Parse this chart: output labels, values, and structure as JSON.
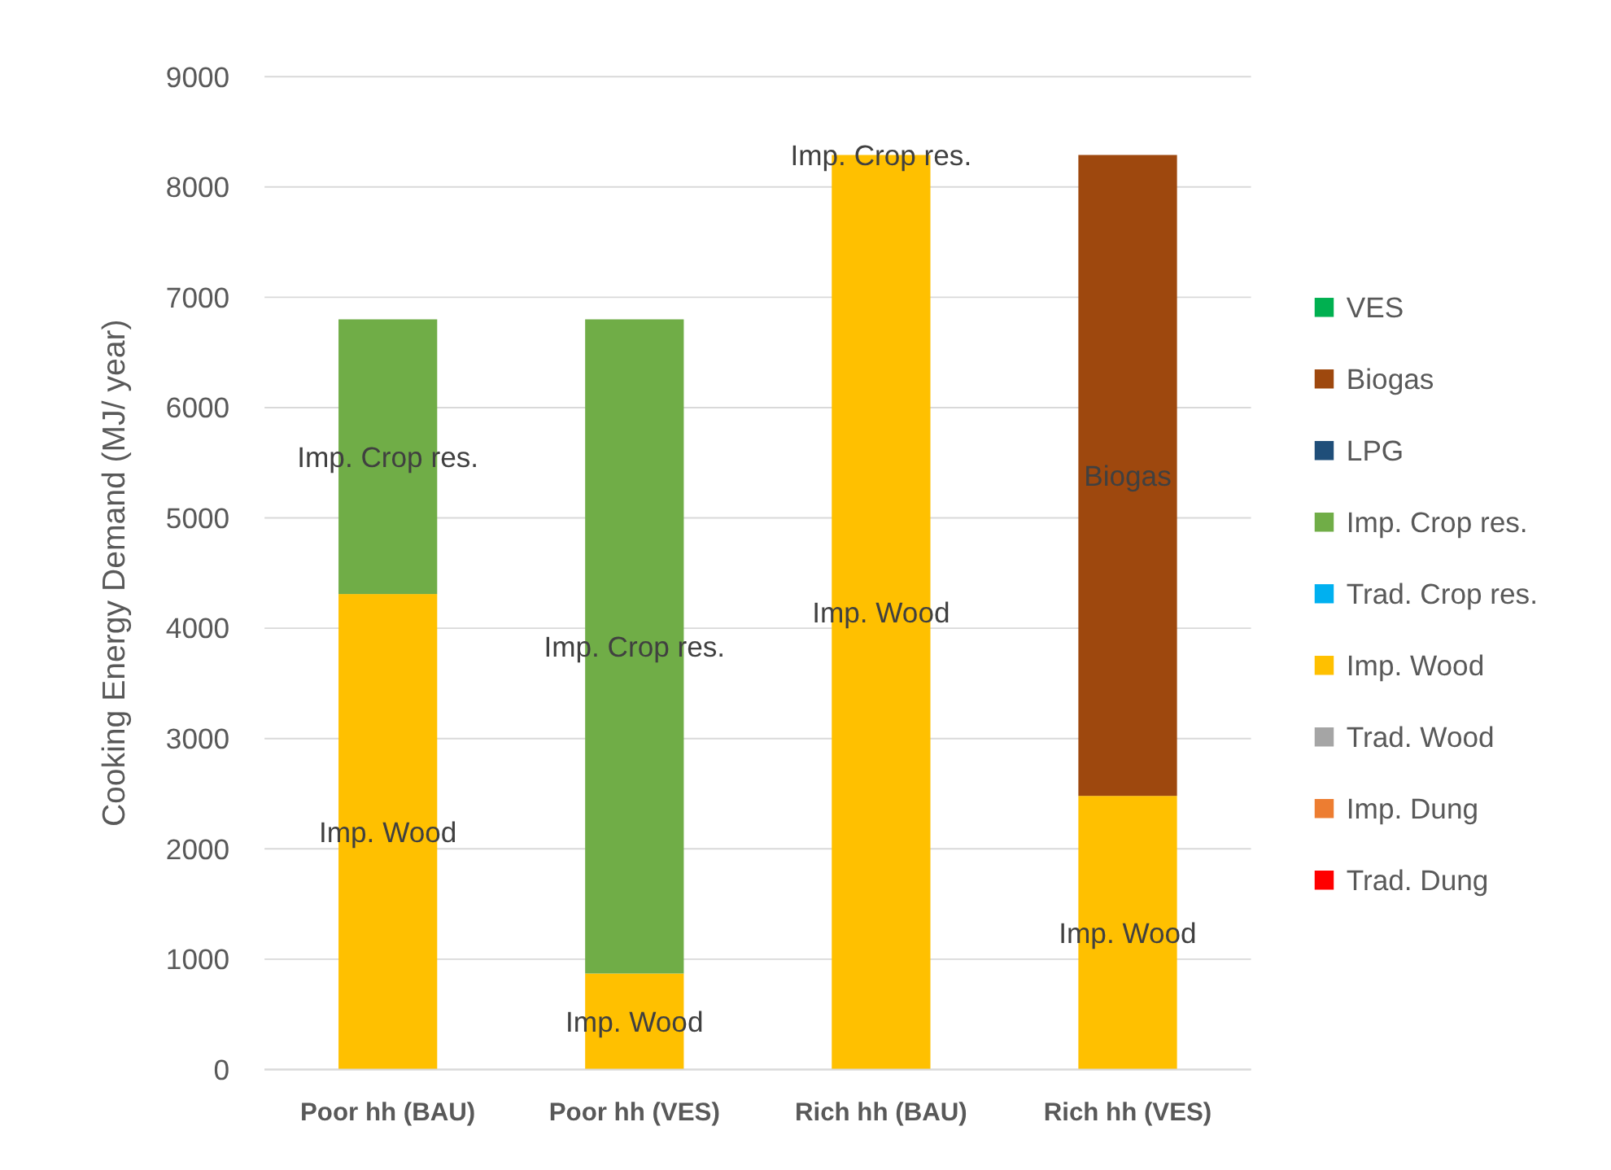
{
  "chart_data": {
    "type": "bar",
    "stacked": true,
    "ylabel": "Cooking Energy Demand (MJ/ year)",
    "categories": [
      "Poor hh (BAU)",
      "Poor hh (VES)",
      "Rich hh (BAU)",
      "Rich hh (VES)"
    ],
    "ylim": [
      0,
      9000
    ],
    "yticks": [
      0,
      1000,
      2000,
      3000,
      4000,
      5000,
      6000,
      7000,
      8000,
      9000
    ],
    "grid": "y",
    "legend": "right",
    "series": [
      {
        "name": "Trad. Dung",
        "color": "#ff0000",
        "values": [
          0,
          0,
          0,
          0
        ]
      },
      {
        "name": "Imp. Dung",
        "color": "#ed7d31",
        "values": [
          0,
          0,
          0,
          0
        ]
      },
      {
        "name": "Trad. Wood",
        "color": "#a5a5a5",
        "values": [
          0,
          0,
          0,
          0
        ]
      },
      {
        "name": "Imp. Wood",
        "color": "#ffc000",
        "values": [
          4310,
          870,
          8290,
          2480
        ],
        "value_labels": [
          "Imp. Wood",
          "Imp. Wood",
          "Imp. Wood",
          "Imp. Wood"
        ]
      },
      {
        "name": "Trad. Crop res.",
        "color": "#00b0f0",
        "values": [
          0,
          0,
          0,
          0
        ]
      },
      {
        "name": "Imp. Crop res.",
        "color": "#70ad47",
        "values": [
          2490,
          5930,
          0,
          0
        ],
        "value_labels": [
          "Imp. Crop res.",
          "Imp. Crop res.",
          "Imp. Crop res.",
          null
        ]
      },
      {
        "name": "LPG",
        "color": "#1f4e79",
        "values": [
          0,
          0,
          0,
          0
        ]
      },
      {
        "name": "Biogas",
        "color": "#9e480e",
        "values": [
          0,
          0,
          0,
          5810
        ],
        "value_labels": [
          null,
          null,
          null,
          "Biogas"
        ]
      },
      {
        "name": "VES",
        "color": "#00b050",
        "values": [
          0,
          0,
          0,
          0
        ]
      }
    ]
  }
}
